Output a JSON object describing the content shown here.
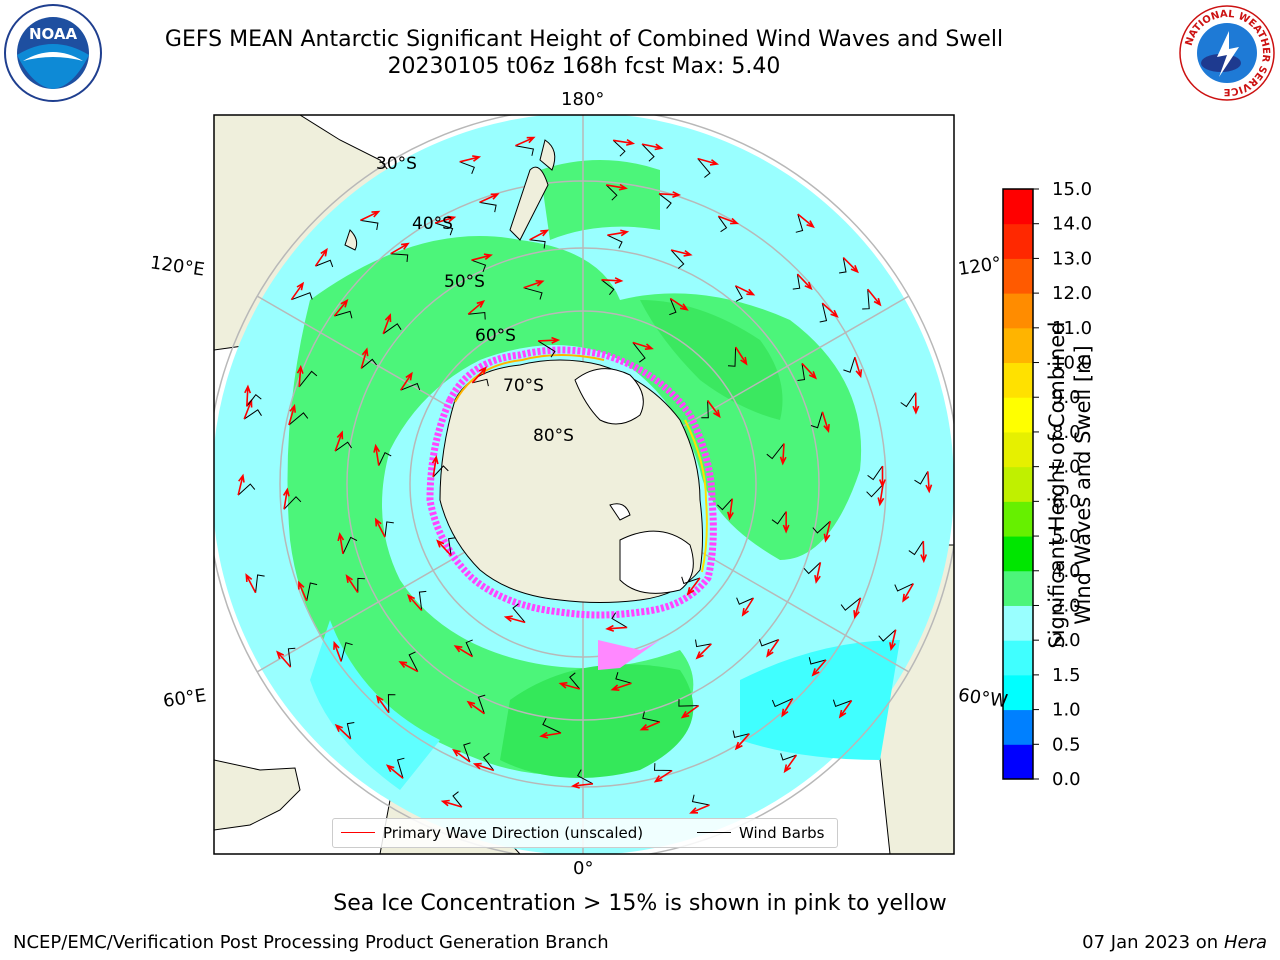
{
  "header": {
    "title_line1": "GEFS MEAN Antarctic Significant Height of Combined Wind Waves and Swell",
    "title_line2": "20230105 t06z 168h fcst   Max: 5.40"
  },
  "map": {
    "projection": "south-polar-stereographic",
    "longitude_labels": {
      "top": "180°",
      "bottom": "0°",
      "upper_left": "120°E",
      "lower_left": "60°E",
      "upper_right": "120°",
      "lower_right": "60°W"
    },
    "latitude_labels": [
      "30°S",
      "40°S",
      "50°S",
      "60°S",
      "70°S",
      "80°S"
    ],
    "colors": {
      "land": "#efefdc",
      "ice_sheet": "#ffffff",
      "graticule": "#b8b8b8",
      "coast": "#000000",
      "sea_ice": "#ff44ff",
      "wave_arrow": "#ff0000",
      "wind_barb": "#000000"
    }
  },
  "legend": {
    "wave_direction": "Primary Wave Direction (unscaled)",
    "wind_barbs": "Wind Barbs"
  },
  "colorbar": {
    "label_line1": "Significant Height of Combined",
    "label_line2": "Wind Waves and Swell [m]",
    "ticks": [
      "0.0",
      "0.5",
      "1.0",
      "1.5",
      "2.0",
      "3.0",
      "4.0",
      "5.0",
      "6.0",
      "7.0",
      "8.0",
      "9.0",
      "10.0",
      "11.0",
      "12.0",
      "13.0",
      "14.0",
      "15.0"
    ],
    "colors": [
      "#0000ff",
      "#0080ff",
      "#00ffff",
      "#40ffff",
      "#99ffff",
      "#4cf57a",
      "#00e600",
      "#66f000",
      "#c0f000",
      "#e6f000",
      "#ffff00",
      "#ffe100",
      "#ffb400",
      "#ff8c00",
      "#ff5a00",
      "#ff2800",
      "#ff0000"
    ]
  },
  "footer": {
    "ice_note": "Sea Ice Concentration > 15% is shown in pink to yellow",
    "credit": "NCEP/EMC/Verification Post Processing Product Generation Branch",
    "date": "07 Jan 2023 on ",
    "host": "Hera"
  },
  "logos": {
    "left": "NOAA",
    "right": "NATIONAL WEATHER SERVICE"
  }
}
